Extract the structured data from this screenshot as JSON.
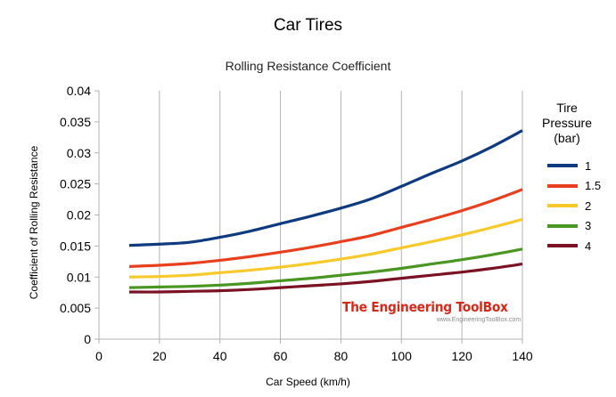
{
  "chart_data": {
    "type": "line",
    "title": "Car Tires",
    "subtitle": "Rolling Resistance Coefficient",
    "xlabel": "Car Speed (km/h)",
    "ylabel": "Coefficient of Rolling Resistance",
    "xlim": [
      0,
      140
    ],
    "ylim": [
      0,
      0.04
    ],
    "xticks": [
      "0",
      "20",
      "40",
      "60",
      "80",
      "100",
      "120",
      "140"
    ],
    "yticks": [
      "0",
      "0.005",
      "0.01",
      "0.015",
      "0.02",
      "0.025",
      "0.03",
      "0.035",
      "0.04"
    ],
    "grid": "vertical",
    "legend_title": "Tire Pressure (bar)",
    "legend_title_lines": [
      "Tire",
      "Pressure",
      "(bar)"
    ],
    "legend_position": "right",
    "x": [
      10,
      20,
      30,
      40,
      50,
      60,
      70,
      80,
      90,
      100,
      110,
      120,
      130,
      140
    ],
    "series": [
      {
        "name": "1",
        "color": "#0e3a80",
        "values": [
          0.0151,
          0.0153,
          0.0156,
          0.0164,
          0.0174,
          0.0186,
          0.0198,
          0.0211,
          0.0226,
          0.0246,
          0.0267,
          0.0287,
          0.031,
          0.0336
        ]
      },
      {
        "name": "1.5",
        "color": "#e8401f",
        "values": [
          0.0117,
          0.0119,
          0.0122,
          0.0127,
          0.0133,
          0.014,
          0.0148,
          0.0157,
          0.0167,
          0.018,
          0.0193,
          0.0207,
          0.0223,
          0.0241
        ]
      },
      {
        "name": "2",
        "color": "#f8c92a",
        "values": [
          0.01,
          0.0101,
          0.0103,
          0.0107,
          0.0111,
          0.0116,
          0.0122,
          0.0129,
          0.0137,
          0.0147,
          0.0157,
          0.0168,
          0.018,
          0.0193
        ]
      },
      {
        "name": "3",
        "color": "#4a9622",
        "values": [
          0.0083,
          0.0084,
          0.0085,
          0.0087,
          0.009,
          0.0094,
          0.0098,
          0.0103,
          0.0108,
          0.0114,
          0.0121,
          0.0128,
          0.0136,
          0.0145
        ]
      },
      {
        "name": "4",
        "color": "#7a1224",
        "values": [
          0.0076,
          0.0076,
          0.0077,
          0.0078,
          0.008,
          0.0083,
          0.0086,
          0.0089,
          0.0093,
          0.0098,
          0.0103,
          0.0108,
          0.0114,
          0.0121
        ]
      }
    ]
  },
  "watermark": {
    "title": "The Engineering ToolBox",
    "url": "www.EngineeringToolBox.com"
  }
}
